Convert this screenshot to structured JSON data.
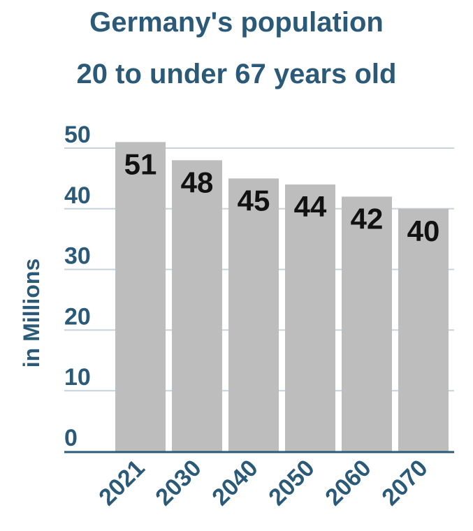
{
  "chart_data": {
    "type": "bar",
    "title_lines": [
      "Germany's population",
      "20 to under 67 years old"
    ],
    "ylabel": "in Millions",
    "xlabel": "",
    "categories": [
      "2021",
      "2030",
      "2040",
      "2050",
      "2060",
      "2070"
    ],
    "values": [
      51,
      48,
      45,
      44,
      42,
      40
    ],
    "data_labels": [
      "51",
      "48",
      "45",
      "44",
      "42",
      "40"
    ],
    "yticks": [
      0,
      10,
      20,
      30,
      40,
      50
    ],
    "ylim": [
      0,
      50
    ],
    "grid": true,
    "legend": "none",
    "colors": {
      "bar": "#bdbdbd",
      "text": "#2b5a78",
      "grid": "#c7d2dc",
      "axis": "#2b5a78",
      "data_label": "#111111"
    }
  }
}
